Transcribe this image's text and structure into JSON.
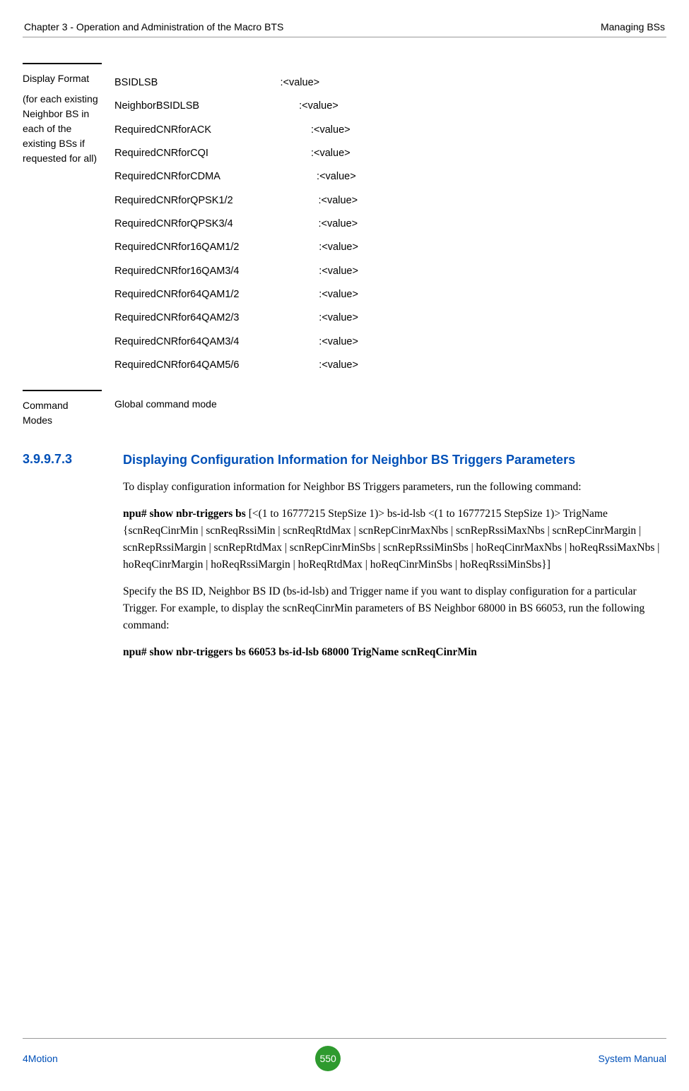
{
  "header": {
    "left": "Chapter 3 - Operation and Administration of the Macro BTS",
    "right": "Managing BSs"
  },
  "display_format": {
    "label_line1": "Display Format",
    "label_line2": "(for each existing Neighbor BS in each of the existing BSs if requested for all)",
    "rows": [
      {
        "key": "BSIDLSB",
        "pad": "                                           ",
        "val": ":<value>"
      },
      {
        "key": "NeighborBSIDLSB",
        "pad": "                                   ",
        "val": ":<value>"
      },
      {
        "key": "RequiredCNRforACK",
        "pad": "                                   ",
        "val": ":<value>"
      },
      {
        "key": "RequiredCNRforCQI",
        "pad": "                                    ",
        "val": ":<value>"
      },
      {
        "key": "RequiredCNRforCDMA",
        "pad": "                                  ",
        "val": ":<value>"
      },
      {
        "key": "RequiredCNRforQPSK1/2",
        "pad": "                              ",
        "val": ":<value>"
      },
      {
        "key": "RequiredCNRforQPSK3/4",
        "pad": "                              ",
        "val": ":<value>"
      },
      {
        "key": "RequiredCNRfor16QAM1/2",
        "pad": "                            ",
        "val": ":<value>"
      },
      {
        "key": "RequiredCNRfor16QAM3/4",
        "pad": "                            ",
        "val": ":<value>"
      },
      {
        "key": "RequiredCNRfor64QAM1/2",
        "pad": "                            ",
        "val": ":<value>"
      },
      {
        "key": "RequiredCNRfor64QAM2/3",
        "pad": "                            ",
        "val": ":<value>"
      },
      {
        "key": "RequiredCNRfor64QAM3/4",
        "pad": "                            ",
        "val": ":<value>"
      },
      {
        "key": "RequiredCNRfor64QAM5/6",
        "pad": "                            ",
        "val": ":<value>"
      }
    ]
  },
  "command_modes": {
    "label": "Command Modes",
    "value": "Global command mode"
  },
  "subsection": {
    "number": "3.9.9.7.3",
    "title": "Displaying Configuration Information for Neighbor BS Triggers Parameters"
  },
  "body": {
    "p1": "To display configuration information for Neighbor BS Triggers parameters, run the following command:",
    "p2_bold": "npu# show nbr-triggers bs",
    "p2_rest": " [<(1 to 16777215 StepSize 1)> bs-id-lsb <(1 to 16777215 StepSize 1)> TrigName {scnReqCinrMin | scnReqRssiMin | scnReqRtdMax | scnRepCinrMaxNbs | scnRepRssiMaxNbs | scnRepCinrMargin | scnRepRssiMargin | scnRepRtdMax | scnRepCinrMinSbs | scnRepRssiMinSbs | hoReqCinrMaxNbs | hoReqRssiMaxNbs | hoReqCinrMargin | hoReqRssiMargin | hoReqRtdMax | hoReqCinrMinSbs | hoReqRssiMinSbs}]",
    "p3": "Specify the BS ID, Neighbor BS ID (bs-id-lsb) and Trigger name if you want to display configuration for a particular Trigger. For example, to display the scnReqCinrMin parameters of BS Neighbor 68000 in BS 66053, run the following command:",
    "p4_bold": "npu# show nbr-triggers bs 66053 bs-id-lsb 68000 TrigName scnReqCinrMin"
  },
  "footer": {
    "left": "4Motion",
    "page": "550",
    "right": "System Manual"
  }
}
